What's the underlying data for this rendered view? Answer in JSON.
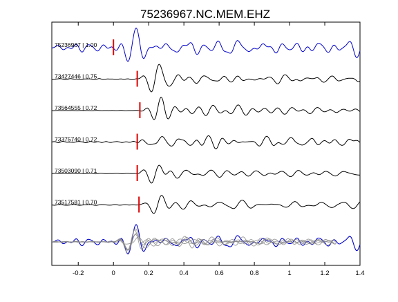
{
  "chart_data": {
    "type": "line",
    "title": "75236967.NC.MEM.EHZ",
    "xlabel": "",
    "ylabel": "",
    "xlim": [
      -0.35,
      1.4
    ],
    "xticks": [
      -0.2,
      0,
      0.2,
      0.4,
      0.6,
      0.8,
      1,
      1.2,
      1.4
    ],
    "xtick_labels": [
      "-0.2",
      "0",
      "0.2",
      "0.4",
      "0.6",
      "0.8",
      "1",
      "1.2",
      "1.4"
    ],
    "grid": false,
    "legend": "none",
    "colors": {
      "master": "#0000cc",
      "trace": "#000000",
      "pick": "#dd0000",
      "overlay": "#888888"
    },
    "traces": [
      {
        "label": "75236967 | 1.00",
        "pick": 0.0,
        "color": "master",
        "seed": 11,
        "noise": 0.65,
        "amp": 1.0
      },
      {
        "label": "73427446 | 0.75",
        "pick": 0.135,
        "color": "trace",
        "seed": 23,
        "noise": 0.1,
        "amp": 0.9
      },
      {
        "label": "73564555 | 0.72",
        "pick": 0.15,
        "color": "trace",
        "seed": 37,
        "noise": 0.03,
        "amp": 0.95
      },
      {
        "label": "73375740 | 0.72",
        "pick": 0.135,
        "color": "trace",
        "seed": 41,
        "noise": 0.1,
        "amp": 0.9
      },
      {
        "label": "73503090 | 0.71",
        "pick": 0.135,
        "color": "trace",
        "seed": 53,
        "noise": 0.08,
        "amp": 0.9
      },
      {
        "label": "73517581 | 0.70",
        "pick": 0.145,
        "color": "trace",
        "seed": 67,
        "noise": 0.08,
        "amp": 0.85
      }
    ]
  }
}
